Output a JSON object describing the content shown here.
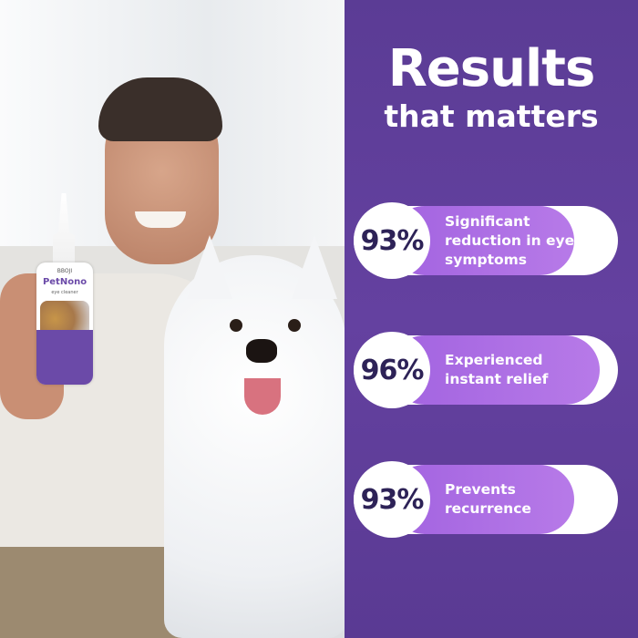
{
  "product": {
    "brand": "BBOJI",
    "name": "PetNono",
    "subtitle": "eye cleaner"
  },
  "heading": {
    "line1": "Results",
    "line2": "that matters"
  },
  "stats": [
    {
      "value": "93%",
      "label": "Significant reduction in eye symptoms"
    },
    {
      "value": "96%",
      "label": "Experienced instant relief"
    },
    {
      "value": "93%",
      "label": "Prevents recurrence"
    }
  ],
  "colors": {
    "panel": "#5f3e9a",
    "pill_fill": "#ac6fe4",
    "percent_text": "#2d2257"
  }
}
